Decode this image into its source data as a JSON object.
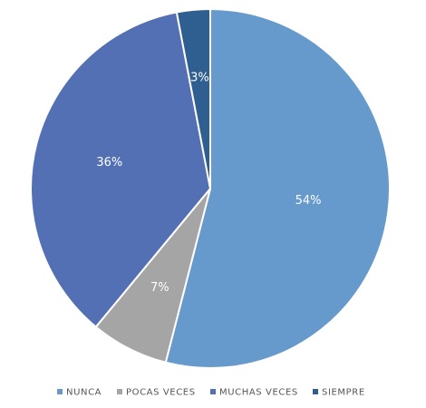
{
  "chart_data": {
    "type": "pie",
    "categories": [
      "NUNCA",
      "POCAS VECES",
      "MUCHAS VECES",
      "SIEMPRE"
    ],
    "values": [
      54,
      7,
      36,
      3
    ],
    "data_labels": [
      "54%",
      "7%",
      "36%",
      "3%"
    ],
    "colors": [
      "#6699CC",
      "#A5A5A5",
      "#5470B4",
      "#2F5E91"
    ],
    "start_angle_deg": 0,
    "direction": "clockwise",
    "legend_position": "bottom"
  }
}
